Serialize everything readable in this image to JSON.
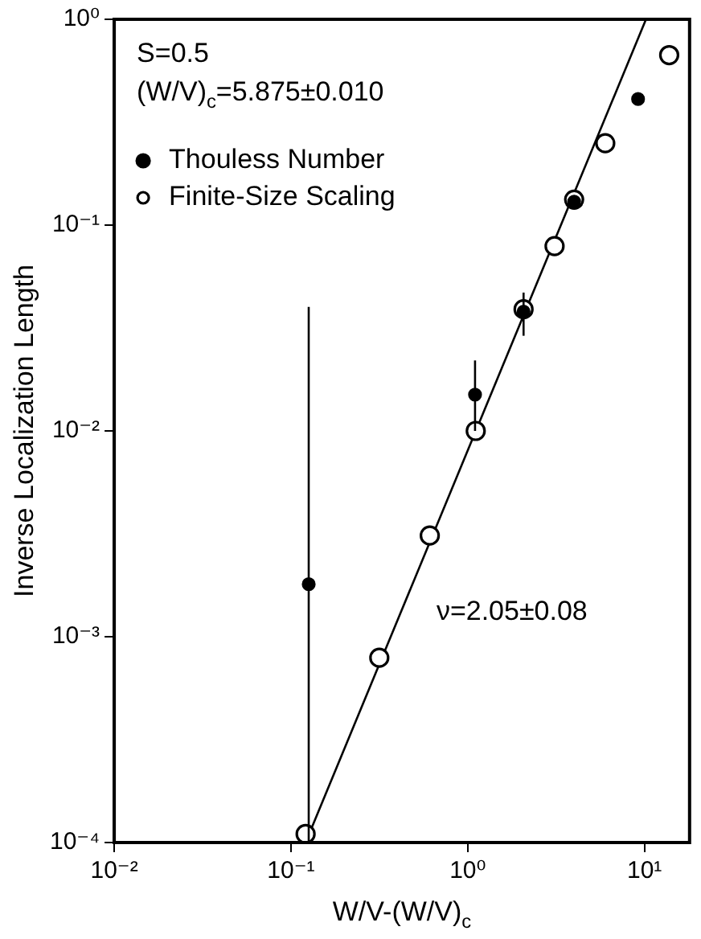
{
  "chart_data": {
    "type": "scatter",
    "xlabel": "W/V-(W/V)$_{c}$",
    "ylabel": "Inverse Localization Length",
    "log": "xy",
    "grid": false,
    "legend": "top left",
    "xlim": [
      0.01,
      18
    ],
    "xticks": [
      {
        "value": 0.01,
        "label": "10⁻²"
      },
      {
        "value": 0.1,
        "label": "10⁻¹"
      },
      {
        "value": 1,
        "label": "10⁰"
      },
      {
        "value": 10,
        "label": "10¹"
      }
    ],
    "ylim": [
      0.0001,
      1
    ],
    "yticks": [
      {
        "value": 0.0001,
        "label": "10⁻⁴"
      },
      {
        "value": 0.001,
        "label": "10⁻³"
      },
      {
        "value": 0.01,
        "label": "10⁻²"
      },
      {
        "value": 0.1,
        "label": "10⁻¹"
      },
      {
        "value": 1,
        "label": "10⁰"
      }
    ],
    "series": [
      {
        "name": "Thouless Number",
        "color": "#000000",
        "marker": "circle",
        "x": [
          0.126,
          1.1,
          2.07,
          4.0,
          9.2
        ],
        "values": [
          0.0018,
          0.015,
          0.038,
          0.13,
          0.41
        ],
        "errors": [
          [
            0.0001,
            0.04
          ],
          [
            0.01,
            0.022
          ],
          [
            0.029,
            0.047
          ],
          null,
          null
        ]
      },
      {
        "name": "Finite-Size Scaling",
        "color": "#000000",
        "marker": "circle",
        "x": [
          0.121,
          0.316,
          0.61,
          1.11,
          2.07,
          3.1,
          4.0,
          6.0,
          13.8
        ],
        "values": [
          0.00011,
          0.00079,
          0.0031,
          0.01,
          0.039,
          0.079,
          0.133,
          0.25,
          0.67
        ]
      },
      {
        "type": "line",
        "color": "#000000",
        "marker": "none",
        "x": [
          0.121,
          10.2
        ],
        "values": [
          0.0001,
          1
        ]
      }
    ],
    "annotations": [
      "S=0.5",
      "(W/V)$_{c}$=5.875±0.010",
      "ν=2.05±0.08"
    ]
  }
}
